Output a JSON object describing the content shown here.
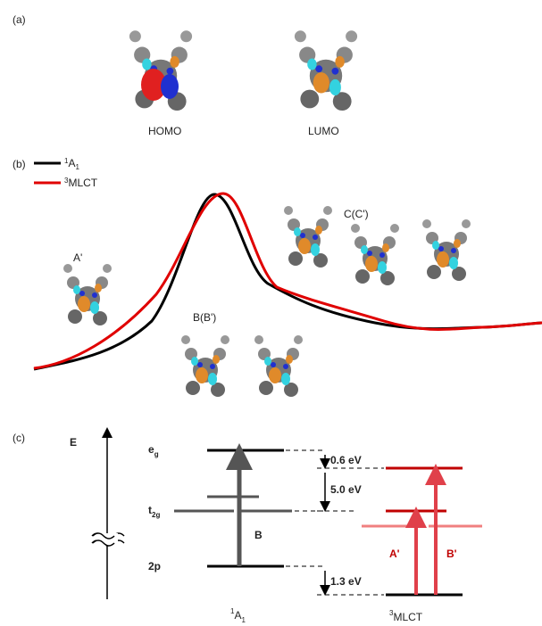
{
  "panel_a": {
    "label": "(a)",
    "homo": "HOMO",
    "lumo": "LUMO"
  },
  "panel_b": {
    "label": "(b)",
    "legend": [
      {
        "sup": "1",
        "base": "A",
        "sub": "1"
      },
      {
        "sup": "3",
        "base": "MLCT"
      }
    ],
    "peaks": [
      "A'",
      "B(B')",
      "C(C')"
    ]
  },
  "panel_c": {
    "label": "(c)",
    "axis": "E",
    "levels": [
      {
        "base": "e",
        "sub": "g"
      },
      {
        "base": "t",
        "sub": "2g"
      },
      {
        "base": "2p"
      }
    ],
    "transition": "B",
    "gaps": [
      "0.6 eV",
      "5.0 eV",
      "1.3 eV"
    ],
    "mlct_transitions": [
      "A'",
      "B'"
    ],
    "states": [
      {
        "sup": "1",
        "base": "A",
        "sub": "1"
      },
      {
        "sup": "3",
        "base": "MLCT"
      }
    ]
  }
}
